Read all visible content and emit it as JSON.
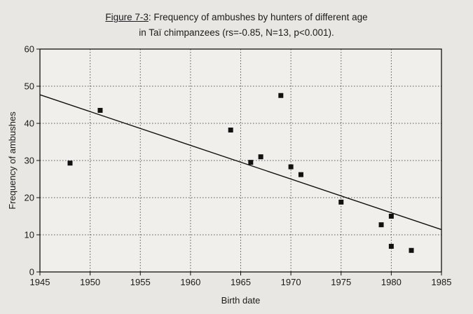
{
  "figure": {
    "label": "Figure 7-3",
    "title_rest": ": Frequency of ambushes by hunters of different age",
    "title_line2": "in Taï chimpanzees (rs=-0.85, N=13, p<0.001)."
  },
  "chart_data": {
    "type": "scatter",
    "xlabel": "Birth date",
    "ylabel": "Frequency of ambushes",
    "xlim": [
      1945,
      1985
    ],
    "ylim": [
      0,
      60
    ],
    "xticks": [
      1945,
      1950,
      1955,
      1960,
      1965,
      1970,
      1975,
      1980,
      1985
    ],
    "yticks": [
      0,
      10,
      20,
      30,
      40,
      50,
      60
    ],
    "grid": true,
    "legend": "none",
    "points": [
      {
        "x": 1948,
        "y": 29.3
      },
      {
        "x": 1951,
        "y": 43.5
      },
      {
        "x": 1964,
        "y": 38.2
      },
      {
        "x": 1966,
        "y": 29.5
      },
      {
        "x": 1967,
        "y": 31.0
      },
      {
        "x": 1969,
        "y": 47.5
      },
      {
        "x": 1970,
        "y": 28.3
      },
      {
        "x": 1971,
        "y": 26.2
      },
      {
        "x": 1975,
        "y": 18.8
      },
      {
        "x": 1979,
        "y": 12.7
      },
      {
        "x": 1980,
        "y": 15.0
      },
      {
        "x": 1980,
        "y": 6.9
      },
      {
        "x": 1982,
        "y": 5.8
      }
    ],
    "trendline": {
      "x": [
        1945,
        1985
      ],
      "y": [
        47.7,
        11.4
      ]
    },
    "colors": {
      "marker": "#111111",
      "line": "#111111",
      "grid": "#555555",
      "plot_bg": "#f0efec"
    }
  }
}
